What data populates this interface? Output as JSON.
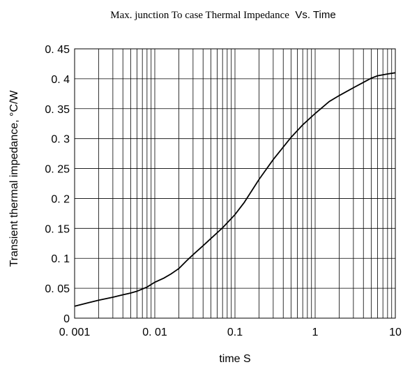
{
  "chart_data": {
    "type": "line",
    "title_part1": "Max. junction To case Thermal Impedance",
    "title_part2": "Vs. Time",
    "xlabel": "time  S",
    "ylabel": "Transient thermal impedance, °C/W",
    "x_scale": "log",
    "xlim": [
      0.001,
      10
    ],
    "ylim": [
      0,
      0.45
    ],
    "x_tick_labels": [
      "0. 001",
      "0. 01",
      "0.1",
      "1",
      "10"
    ],
    "x_tick_values": [
      0.001,
      0.01,
      0.1,
      1,
      10
    ],
    "y_tick_labels": [
      "0",
      "0. 05",
      "0. 1",
      "0. 15",
      "0. 2",
      "0. 25",
      "0. 3",
      "0. 35",
      "0. 4",
      "0. 45"
    ],
    "y_tick_values": [
      0,
      0.05,
      0.1,
      0.15,
      0.2,
      0.25,
      0.3,
      0.35,
      0.4,
      0.45
    ],
    "grid": true,
    "legend": "none",
    "line_color": "#000000",
    "series": [
      {
        "x": [
          0.001,
          0.0015,
          0.002,
          0.003,
          0.004,
          0.005,
          0.006,
          0.008,
          0.01,
          0.013,
          0.016,
          0.02,
          0.025,
          0.03,
          0.04,
          0.05,
          0.07,
          0.1,
          0.13,
          0.2,
          0.3,
          0.5,
          0.7,
          1.0,
          1.5,
          2.0,
          3.0,
          4.0,
          5.0,
          6.0,
          8.0,
          10.0
        ],
        "y": [
          0.02,
          0.026,
          0.03,
          0.035,
          0.039,
          0.042,
          0.045,
          0.052,
          0.06,
          0.067,
          0.074,
          0.083,
          0.096,
          0.106,
          0.121,
          0.133,
          0.151,
          0.173,
          0.193,
          0.232,
          0.265,
          0.302,
          0.323,
          0.342,
          0.362,
          0.372,
          0.385,
          0.394,
          0.401,
          0.405,
          0.408,
          0.41
        ]
      }
    ]
  }
}
